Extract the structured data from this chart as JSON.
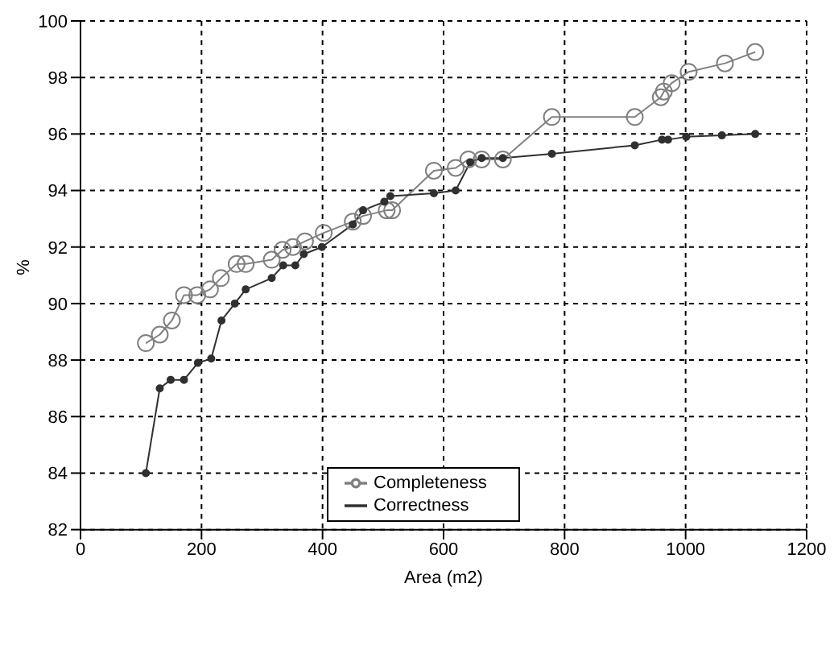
{
  "chart_data": {
    "type": "line",
    "xlabel": "Area (m2)",
    "ylabel": "%",
    "xlim": [
      0,
      1200
    ],
    "xticks": [
      0,
      200,
      400,
      600,
      800,
      1000,
      1200
    ],
    "ylim": [
      82,
      100
    ],
    "yticks": [
      82,
      84,
      86,
      88,
      90,
      92,
      94,
      96,
      98,
      100
    ],
    "grid": true,
    "legend": "bottom",
    "marker": "circle",
    "line_style": "solid",
    "series": [
      {
        "name": "Completeness",
        "color": "#808080",
        "x": [
          108,
          131,
          151,
          171,
          193,
          214,
          232,
          258,
          273,
          316,
          334,
          351,
          371,
          402,
          450,
          467,
          506,
          515,
          584,
          620,
          641,
          663,
          698,
          779,
          916,
          959,
          964,
          977,
          1005,
          1065,
          1115
        ],
        "values": [
          88.6,
          88.9,
          89.4,
          90.3,
          90.3,
          90.5,
          90.9,
          91.4,
          91.4,
          91.55,
          91.9,
          92.0,
          92.2,
          92.5,
          92.9,
          93.1,
          93.3,
          93.3,
          94.7,
          94.8,
          95.1,
          95.1,
          95.1,
          96.6,
          96.6,
          97.3,
          97.5,
          97.8,
          98.2,
          98.5,
          98.9
        ]
      },
      {
        "name": "Correctness",
        "color": "#303030",
        "x": [
          108,
          131,
          149,
          171,
          194,
          216,
          233,
          255,
          273,
          316,
          335,
          355,
          369,
          399,
          450,
          467,
          502,
          512,
          584,
          620,
          644,
          663,
          698,
          779,
          916,
          961,
          971,
          1001,
          1060,
          1115
        ],
        "values": [
          84.0,
          87.0,
          87.3,
          87.3,
          87.9,
          88.05,
          89.4,
          90.0,
          90.5,
          90.9,
          91.35,
          91.35,
          91.75,
          92.0,
          92.8,
          93.3,
          93.6,
          93.8,
          93.9,
          94.0,
          95.0,
          95.15,
          95.15,
          95.3,
          95.6,
          95.8,
          95.8,
          95.9,
          95.95,
          96.0
        ]
      }
    ]
  }
}
